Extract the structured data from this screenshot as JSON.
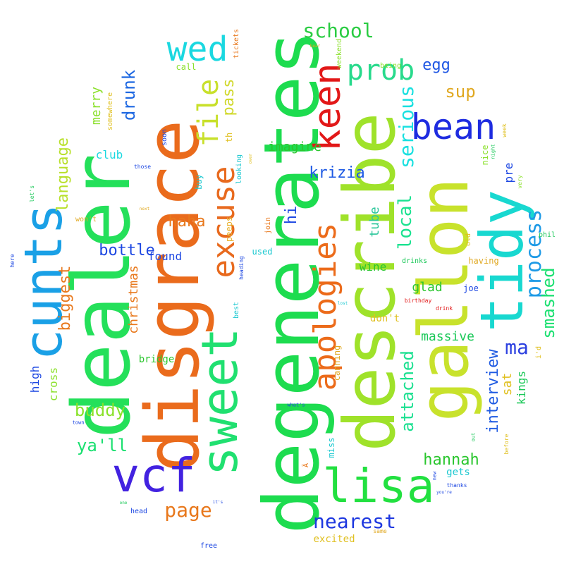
{
  "words": [
    {
      "text": "degenerates",
      "color": "#1ddc4f"
    },
    {
      "text": "describe",
      "color": "#9fe22a"
    },
    {
      "text": "dealer",
      "color": "#24e05a"
    },
    {
      "text": "disgrace",
      "color": "#ea6b1c"
    },
    {
      "text": "gallon",
      "color": "#c8e22c"
    },
    {
      "text": "tidy",
      "color": "#18d8d0"
    },
    {
      "text": "sweet",
      "color": "#20e070"
    },
    {
      "text": "cunts",
      "color": "#1aa0e6"
    },
    {
      "text": "vcf",
      "color": "#4222e0"
    },
    {
      "text": "lisa",
      "color": "#22e040"
    },
    {
      "text": "apologies",
      "color": "#ec6b1a"
    },
    {
      "text": "excuse",
      "color": "#e86a1e"
    },
    {
      "text": "keen",
      "color": "#e21818"
    },
    {
      "text": "bean",
      "color": "#1e2ce0"
    },
    {
      "text": "wed",
      "color": "#1ad8e0"
    },
    {
      "text": "prob",
      "color": "#28da8c"
    },
    {
      "text": "school",
      "color": "#2acc42"
    },
    {
      "text": "process",
      "color": "#1e9ae6"
    },
    {
      "text": "file",
      "color": "#c8e02a"
    },
    {
      "text": "serious",
      "color": "#1ae0e0"
    },
    {
      "text": "local",
      "color": "#1ae290"
    },
    {
      "text": "smashed",
      "color": "#1ae070"
    },
    {
      "text": "ma",
      "color": "#2c40e0"
    },
    {
      "text": "egg",
      "color": "#1e56e4"
    },
    {
      "text": "sup",
      "color": "#e0a820"
    },
    {
      "text": "nearest",
      "color": "#1e38e0"
    },
    {
      "text": "hannah",
      "color": "#2ac62e"
    },
    {
      "text": "page",
      "color": "#e8781c"
    },
    {
      "text": "ya'll",
      "color": "#1ae070"
    },
    {
      "text": "buddy",
      "color": "#8ae22a"
    },
    {
      "text": "bottle",
      "color": "#1e48e2"
    },
    {
      "text": "haha",
      "color": "#e8781c"
    },
    {
      "text": "krizia",
      "color": "#1e5ae4"
    },
    {
      "text": "imagine",
      "color": "#2ac62e"
    },
    {
      "text": "pass",
      "color": "#d0d82a"
    },
    {
      "text": "drunk",
      "color": "#1e68e2"
    },
    {
      "text": "language",
      "color": "#b8e02a"
    },
    {
      "text": "biggest",
      "color": "#e8781c"
    },
    {
      "text": "merry",
      "color": "#8ae02a"
    },
    {
      "text": "club",
      "color": "#1ad8e0"
    },
    {
      "text": "christmas",
      "color": "#e8781c"
    },
    {
      "text": "attached",
      "color": "#1ae090"
    },
    {
      "text": "interview",
      "color": "#1e5ae2"
    },
    {
      "text": "massive",
      "color": "#1ac858"
    },
    {
      "text": "glad",
      "color": "#2ac62e"
    },
    {
      "text": "wine",
      "color": "#2ac62e"
    },
    {
      "text": "tube",
      "color": "#2ac69a"
    },
    {
      "text": "hi",
      "color": "#1e48e2"
    },
    {
      "text": "found",
      "color": "#1e48e2"
    },
    {
      "text": "bridge",
      "color": "#2ac62e"
    },
    {
      "text": "cross",
      "color": "#8ae02a"
    },
    {
      "text": "high",
      "color": "#1e48e2"
    },
    {
      "text": "kings",
      "color": "#1ac858"
    },
    {
      "text": "sat",
      "color": "#e0c020"
    },
    {
      "text": "pre",
      "color": "#1e48e2"
    },
    {
      "text": "excited",
      "color": "#e0c020"
    },
    {
      "text": "gets",
      "color": "#1ac8d0"
    },
    {
      "text": "miss",
      "color": "#1ac8d0"
    },
    {
      "text": "canning",
      "color": "#e0a820"
    },
    {
      "text": "don't",
      "color": "#e0c020"
    },
    {
      "text": "peeps",
      "color": "#e8b02a"
    },
    {
      "text": "used",
      "color": "#1ac8d0"
    },
    {
      "text": "buy",
      "color": "#1ac8d0"
    },
    {
      "text": "call",
      "color": "#8ae02a"
    },
    {
      "text": "tickets",
      "color": "#e8781c"
    },
    {
      "text": "weekend",
      "color": "#8ae02a"
    },
    {
      "text": "being",
      "color": "#8ae02a"
    },
    {
      "text": "nice",
      "color": "#8ae02a"
    },
    {
      "text": "drinks",
      "color": "#1ac858"
    },
    {
      "text": "having",
      "color": "#e0a820"
    },
    {
      "text": "joe",
      "color": "#1e48e2"
    },
    {
      "text": "phil",
      "color": "#1ac858"
    },
    {
      "text": "birthday",
      "color": "#e21818"
    },
    {
      "text": "drink",
      "color": "#e21818"
    },
    {
      "text": "old",
      "color": "#e0c020"
    },
    {
      "text": "i'd",
      "color": "#e0c020"
    },
    {
      "text": "looking",
      "color": "#1ac8d0"
    },
    {
      "text": "join",
      "color": "#e8781c"
    },
    {
      "text": "th",
      "color": "#e0c020"
    },
    {
      "text": "best",
      "color": "#1ac8d0"
    },
    {
      "text": "heading",
      "color": "#1e48e2"
    },
    {
      "text": "soon",
      "color": "#1e48e2"
    },
    {
      "text": "somewhere",
      "color": "#e0c020"
    },
    {
      "text": "won't",
      "color": "#e0a820"
    },
    {
      "text": "let's",
      "color": "#1ac858"
    },
    {
      "text": "here",
      "color": "#1e48e2"
    },
    {
      "text": "those",
      "color": "#1e48e2"
    },
    {
      "text": "what's",
      "color": "#1e48e2"
    },
    {
      "text": "town",
      "color": "#1e48e2"
    },
    {
      "text": "head",
      "color": "#1e48e2"
    },
    {
      "text": "free",
      "color": "#1e48e2"
    },
    {
      "text": "same",
      "color": "#e0a820"
    },
    {
      "text": "thanks",
      "color": "#1e48e2"
    },
    {
      "text": "you're",
      "color": "#1e48e2"
    },
    {
      "text": "before",
      "color": "#e0c020"
    },
    {
      "text": "very",
      "color": "#8ae02a"
    },
    {
      "text": "week",
      "color": "#e0c020"
    },
    {
      "text": "night",
      "color": "#1ac858"
    },
    {
      "text": "new",
      "color": "#1e48e2"
    },
    {
      "text": "out",
      "color": "#1ac858"
    },
    {
      "text": "next",
      "color": "#e0a820"
    },
    {
      "text": "one",
      "color": "#1ac858"
    },
    {
      "text": "it's",
      "color": "#1e48e2"
    },
    {
      "text": "lost",
      "color": "#1ac8d0"
    },
    {
      "text": "bear",
      "color": "#e0a820"
    },
    {
      "text": "over",
      "color": "#e0c020"
    },
    {
      "text": "Ã",
      "color": "#e8781c"
    }
  ]
}
